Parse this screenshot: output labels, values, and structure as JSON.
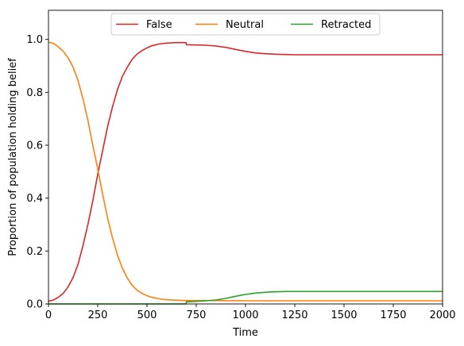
{
  "chart_data": {
    "type": "line",
    "title": "",
    "xlabel": "Time",
    "ylabel": "Proportion of population holding belief",
    "xlim": [
      0,
      2000
    ],
    "ylim": [
      0,
      1.11
    ],
    "xticks": [
      0,
      250,
      500,
      750,
      1000,
      1250,
      1500,
      1750,
      2000
    ],
    "yticks": [
      0.0,
      0.2,
      0.4,
      0.6,
      0.8,
      1.0
    ],
    "xtick_labels": [
      "0",
      "250",
      "500",
      "750",
      "1000",
      "1250",
      "1500",
      "1750",
      "2000"
    ],
    "ytick_labels": [
      "0.0",
      "0.2",
      "0.4",
      "0.6",
      "0.8",
      "1.0"
    ],
    "grid": false,
    "legend": {
      "placement": "top-center",
      "columns": 3
    },
    "series": [
      {
        "name": "False",
        "color": "#d62728",
        "points": [
          [
            0,
            0.01
          ],
          [
            25,
            0.015
          ],
          [
            50,
            0.025
          ],
          [
            75,
            0.04
          ],
          [
            100,
            0.065
          ],
          [
            125,
            0.1
          ],
          [
            150,
            0.15
          ],
          [
            175,
            0.22
          ],
          [
            200,
            0.3
          ],
          [
            225,
            0.39
          ],
          [
            250,
            0.49
          ],
          [
            275,
            0.58
          ],
          [
            300,
            0.67
          ],
          [
            325,
            0.745
          ],
          [
            350,
            0.81
          ],
          [
            375,
            0.86
          ],
          [
            400,
            0.895
          ],
          [
            425,
            0.925
          ],
          [
            450,
            0.945
          ],
          [
            475,
            0.958
          ],
          [
            500,
            0.968
          ],
          [
            525,
            0.976
          ],
          [
            550,
            0.981
          ],
          [
            575,
            0.984
          ],
          [
            600,
            0.986
          ],
          [
            625,
            0.987
          ],
          [
            650,
            0.988
          ],
          [
            675,
            0.988
          ],
          [
            698,
            0.988
          ],
          [
            700,
            0.98
          ],
          [
            750,
            0.979
          ],
          [
            800,
            0.978
          ],
          [
            850,
            0.975
          ],
          [
            900,
            0.97
          ],
          [
            950,
            0.962
          ],
          [
            1000,
            0.955
          ],
          [
            1050,
            0.949
          ],
          [
            1100,
            0.946
          ],
          [
            1150,
            0.944
          ],
          [
            1200,
            0.943
          ],
          [
            1250,
            0.942
          ],
          [
            1500,
            0.942
          ],
          [
            1750,
            0.942
          ],
          [
            2000,
            0.942
          ]
        ]
      },
      {
        "name": "Neutral",
        "color": "#ff7f0e",
        "points": [
          [
            0,
            0.99
          ],
          [
            25,
            0.985
          ],
          [
            50,
            0.972
          ],
          [
            75,
            0.955
          ],
          [
            100,
            0.93
          ],
          [
            125,
            0.895
          ],
          [
            150,
            0.845
          ],
          [
            175,
            0.775
          ],
          [
            200,
            0.695
          ],
          [
            225,
            0.6
          ],
          [
            250,
            0.51
          ],
          [
            275,
            0.415
          ],
          [
            300,
            0.325
          ],
          [
            325,
            0.25
          ],
          [
            350,
            0.185
          ],
          [
            375,
            0.135
          ],
          [
            400,
            0.098
          ],
          [
            425,
            0.07
          ],
          [
            450,
            0.052
          ],
          [
            475,
            0.04
          ],
          [
            500,
            0.031
          ],
          [
            525,
            0.025
          ],
          [
            550,
            0.021
          ],
          [
            575,
            0.018
          ],
          [
            600,
            0.016
          ],
          [
            650,
            0.014
          ],
          [
            700,
            0.013
          ],
          [
            750,
            0.013
          ],
          [
            800,
            0.013
          ],
          [
            1000,
            0.012
          ],
          [
            1250,
            0.012
          ],
          [
            1500,
            0.012
          ],
          [
            1750,
            0.012
          ],
          [
            2000,
            0.012
          ]
        ]
      },
      {
        "name": "Retracted",
        "color": "#2ca02c",
        "points": [
          [
            0,
            0.0
          ],
          [
            698,
            0.0
          ],
          [
            700,
            0.008
          ],
          [
            750,
            0.01
          ],
          [
            800,
            0.012
          ],
          [
            850,
            0.015
          ],
          [
            900,
            0.021
          ],
          [
            950,
            0.029
          ],
          [
            1000,
            0.036
          ],
          [
            1050,
            0.041
          ],
          [
            1100,
            0.044
          ],
          [
            1150,
            0.046
          ],
          [
            1200,
            0.047
          ],
          [
            1250,
            0.047
          ],
          [
            1500,
            0.047
          ],
          [
            1750,
            0.047
          ],
          [
            2000,
            0.047
          ]
        ]
      }
    ]
  }
}
